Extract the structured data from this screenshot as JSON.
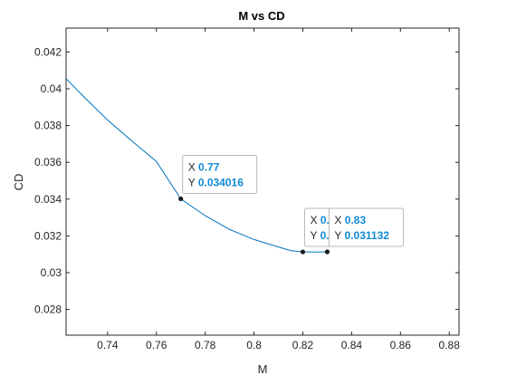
{
  "chart_data": {
    "type": "line",
    "title": "M vs CD",
    "xlabel": "M",
    "ylabel": "CD",
    "xlim": [
      0.723,
      0.884
    ],
    "ylim": [
      0.0266,
      0.0433
    ],
    "grid": false,
    "xticks": [
      0.74,
      0.76,
      0.78,
      0.8,
      0.82,
      0.84,
      0.86,
      0.88
    ],
    "xtick_labels": [
      "0.74",
      "0.76",
      "0.78",
      "0.8",
      "0.82",
      "0.84",
      "0.86",
      "0.88"
    ],
    "yticks": [
      0.028,
      0.03,
      0.032,
      0.034,
      0.036,
      0.038,
      0.04,
      0.042
    ],
    "ytick_labels": [
      "0.028",
      "0.03",
      "0.032",
      "0.034",
      "0.036",
      "0.038",
      "0.04",
      "0.042"
    ],
    "series": [
      {
        "color": "#0072BD",
        "x": [
          0.723,
          0.73,
          0.74,
          0.75,
          0.76,
          0.77,
          0.78,
          0.79,
          0.8,
          0.81,
          0.815,
          0.82,
          0.825,
          0.83
        ],
        "y": [
          0.04055,
          0.0396,
          0.0383,
          0.03715,
          0.03605,
          0.034016,
          0.0331,
          0.03235,
          0.0318,
          0.0314,
          0.0312,
          0.03113,
          0.03112,
          0.031132
        ]
      }
    ],
    "datatips": [
      {
        "x_label": "X",
        "x_value": "0.77",
        "y_label": "Y",
        "y_value": "0.034016",
        "x": 0.77,
        "y": 0.034016
      },
      {
        "x_label": "X",
        "x_value": "0.82",
        "y_label": "Y",
        "y_value": "0.03113",
        "x": 0.82,
        "y": 0.03113
      },
      {
        "x_label": "X",
        "x_value": "0.83",
        "y_label": "Y",
        "y_value": "0.031132",
        "x": 0.83,
        "y": 0.031132
      }
    ],
    "colors": {
      "line": "#0072BD",
      "datatip_value": "#0f8ad4",
      "axis": "#262626"
    }
  }
}
